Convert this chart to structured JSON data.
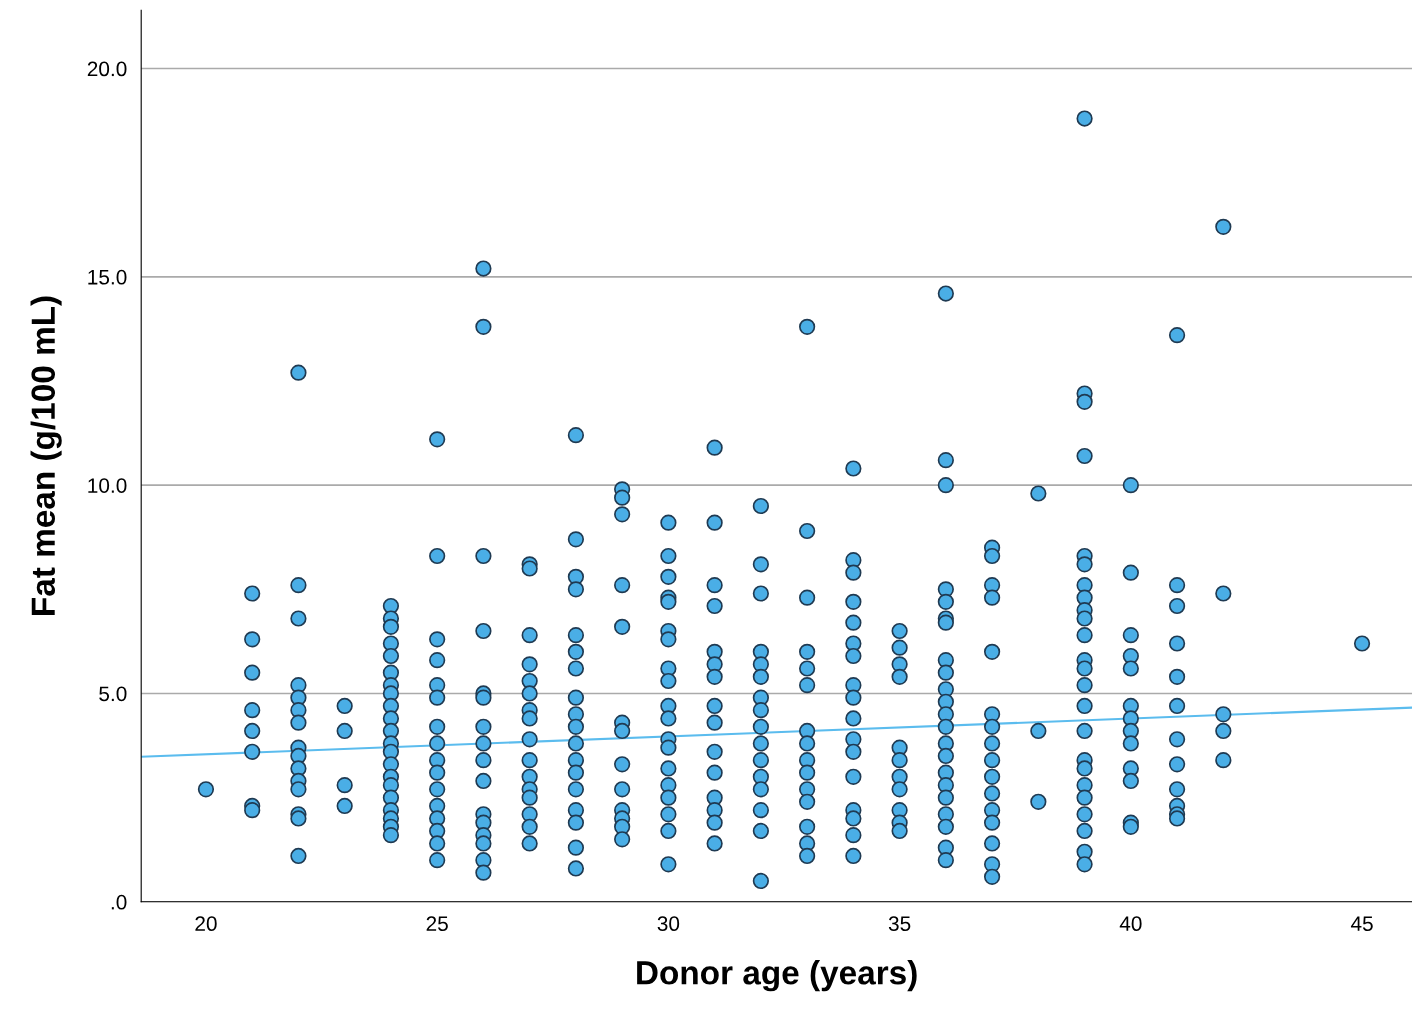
{
  "chart_data": {
    "type": "scatter",
    "xlabel": "Donor age (years)",
    "ylabel": "Fat mean (g/100 mL)",
    "xlim": [
      18.6,
      46.08
    ],
    "ylim": [
      0,
      21.4
    ],
    "xticks": [
      20,
      25,
      30,
      35,
      40,
      45
    ],
    "yticks": [
      {
        "value": 0,
        "label": ".0"
      },
      {
        "value": 5,
        "label": "5.0"
      },
      {
        "value": 10,
        "label": "10.0"
      },
      {
        "value": 15,
        "label": "15.0"
      },
      {
        "value": 20,
        "label": "20.0"
      }
    ],
    "grid": "y",
    "marker": "circle",
    "series": [
      {
        "type": "scatter",
        "color": "#4aaee6",
        "x": [
          20,
          21,
          21,
          21,
          21,
          21,
          21,
          21,
          21,
          22,
          22,
          22,
          22,
          22,
          22,
          22,
          22,
          22,
          22,
          22,
          22,
          22,
          22,
          22,
          23,
          23,
          23,
          23,
          24,
          24,
          24,
          24,
          24,
          24,
          24,
          24,
          24,
          24,
          24,
          24,
          24,
          24,
          24,
          24,
          24,
          24,
          24,
          24,
          24,
          25,
          25,
          25,
          25,
          25,
          25,
          25,
          25,
          25,
          25,
          25,
          25,
          25,
          25,
          25,
          25,
          26,
          26,
          26,
          26,
          26,
          26,
          26,
          26,
          26,
          26,
          26,
          26,
          26,
          26,
          26,
          26,
          27,
          27,
          27,
          27,
          27,
          27,
          27,
          27,
          27,
          27,
          27,
          27,
          27,
          27,
          27,
          27,
          28,
          28,
          28,
          28,
          28,
          28,
          28,
          28,
          28,
          28,
          28,
          28,
          28,
          28,
          28,
          28,
          28,
          28,
          29,
          29,
          29,
          29,
          29,
          29,
          29,
          29,
          29,
          29,
          29,
          29,
          29,
          30,
          30,
          30,
          30,
          30,
          30,
          30,
          30,
          30,
          30,
          30,
          30,
          30,
          30,
          30,
          30,
          30,
          30,
          30,
          31,
          31,
          31,
          31,
          31,
          31,
          31,
          31,
          31,
          31,
          31,
          31,
          31,
          31,
          31,
          32,
          32,
          32,
          32,
          32,
          32,
          32,
          32,
          32,
          32,
          32,
          32,
          32,
          32,
          32,
          32,
          33,
          33,
          33,
          33,
          33,
          33,
          33,
          33,
          33,
          33,
          33,
          33,
          33,
          33,
          33,
          34,
          34,
          34,
          34,
          34,
          34,
          34,
          34,
          34,
          34,
          34,
          34,
          34,
          34,
          34,
          34,
          34,
          35,
          35,
          35,
          35,
          35,
          35,
          35,
          35,
          35,
          35,
          35,
          36,
          36,
          36,
          36,
          36,
          36,
          36,
          36,
          36,
          36,
          36,
          36,
          36,
          36,
          36,
          36,
          36,
          36,
          36,
          36,
          36,
          36,
          37,
          37,
          37,
          37,
          37,
          37,
          37,
          37,
          37,
          37,
          37,
          37,
          37,
          37,
          37,
          37,
          38,
          38,
          38,
          39,
          39,
          39,
          39,
          39,
          39,
          39,
          39,
          39,
          39,
          39,
          39,
          39,
          39,
          39,
          39,
          39,
          39,
          39,
          39,
          39,
          39,
          39,
          39,
          40,
          40,
          40,
          40,
          40,
          40,
          40,
          40,
          40,
          40,
          40,
          40,
          40,
          41,
          41,
          41,
          41,
          41,
          41,
          41,
          41,
          41,
          41,
          41,
          41,
          42,
          42,
          42,
          42,
          42,
          45
        ],
        "values": [
          2.7,
          7.4,
          6.3,
          5.5,
          4.6,
          4.1,
          3.6,
          2.3,
          2.2,
          12.7,
          7.6,
          6.8,
          5.2,
          4.9,
          4.6,
          4.3,
          3.7,
          3.5,
          3.2,
          2.9,
          2.7,
          2.1,
          2.0,
          1.1,
          4.7,
          4.1,
          2.8,
          2.3,
          7.1,
          6.8,
          6.6,
          6.2,
          5.9,
          5.5,
          5.2,
          5.0,
          4.7,
          4.4,
          4.1,
          3.8,
          3.6,
          3.3,
          3.0,
          2.8,
          2.5,
          2.2,
          2.0,
          1.8,
          1.6,
          11.1,
          8.3,
          6.3,
          5.8,
          5.2,
          4.9,
          4.2,
          3.8,
          3.4,
          3.1,
          2.7,
          2.3,
          2.0,
          1.7,
          1.4,
          1.0,
          15.2,
          13.8,
          8.3,
          6.5,
          5.0,
          4.9,
          4.2,
          3.8,
          3.4,
          2.9,
          2.1,
          1.9,
          1.6,
          1.4,
          1.0,
          0.7,
          8.1,
          8.0,
          6.4,
          5.7,
          5.3,
          5.0,
          4.6,
          4.4,
          3.9,
          3.4,
          3.0,
          2.7,
          2.5,
          2.1,
          1.8,
          1.4,
          11.2,
          8.7,
          7.8,
          7.5,
          6.4,
          6.0,
          5.6,
          4.9,
          4.5,
          4.2,
          3.8,
          3.4,
          3.1,
          2.7,
          2.2,
          1.9,
          1.3,
          0.8,
          9.9,
          9.7,
          9.3,
          7.6,
          6.6,
          4.3,
          4.1,
          3.3,
          2.7,
          2.2,
          2.0,
          1.8,
          1.5,
          9.1,
          8.3,
          7.8,
          7.3,
          7.2,
          6.5,
          6.3,
          5.6,
          5.3,
          4.7,
          4.4,
          3.9,
          3.7,
          3.2,
          2.8,
          2.5,
          2.1,
          1.7,
          0.9,
          10.9,
          9.1,
          7.6,
          7.1,
          6.0,
          5.7,
          5.4,
          4.7,
          4.3,
          3.6,
          3.1,
          2.5,
          2.2,
          1.9,
          1.4,
          9.5,
          8.1,
          7.4,
          6.0,
          5.7,
          5.4,
          4.9,
          4.6,
          4.2,
          3.8,
          3.4,
          3.0,
          2.7,
          2.2,
          1.7,
          0.5,
          13.8,
          8.9,
          7.3,
          6.0,
          5.6,
          5.2,
          4.1,
          3.8,
          3.4,
          3.1,
          2.7,
          2.4,
          1.8,
          1.4,
          1.1,
          10.4,
          8.2,
          7.9,
          7.2,
          6.7,
          6.2,
          5.9,
          5.2,
          4.9,
          4.4,
          3.9,
          3.6,
          3.0,
          2.2,
          2.0,
          1.6,
          1.1,
          6.5,
          6.1,
          5.7,
          5.4,
          3.7,
          3.4,
          3.0,
          2.7,
          2.2,
          1.9,
          1.7,
          14.6,
          10.6,
          10.0,
          7.5,
          7.2,
          6.8,
          6.7,
          5.8,
          5.5,
          5.1,
          4.8,
          4.5,
          4.2,
          3.8,
          3.5,
          3.1,
          2.8,
          2.5,
          2.1,
          1.8,
          1.3,
          1.0,
          8.5,
          8.3,
          7.6,
          7.3,
          6.0,
          4.5,
          4.2,
          3.8,
          3.4,
          3.0,
          2.6,
          2.2,
          1.9,
          1.4,
          0.9,
          0.6,
          9.8,
          4.1,
          2.4,
          18.8,
          12.2,
          12.0,
          10.7,
          8.3,
          8.1,
          7.6,
          7.3,
          7.0,
          6.8,
          6.4,
          5.8,
          5.6,
          5.2,
          4.7,
          4.1,
          3.4,
          3.2,
          2.8,
          2.5,
          2.1,
          1.7,
          1.2,
          0.9,
          10.0,
          7.9,
          6.4,
          5.9,
          5.6,
          4.7,
          4.4,
          4.1,
          3.8,
          3.2,
          2.9,
          1.9,
          1.8,
          13.6,
          7.6,
          7.1,
          6.2,
          5.4,
          4.7,
          3.9,
          3.3,
          2.7,
          2.3,
          2.1,
          2.0,
          16.2,
          7.4,
          4.5,
          4.1,
          3.4,
          6.2
        ]
      },
      {
        "type": "line",
        "color": "#5bbcee",
        "marker": "none",
        "x": [
          18.6,
          46.08
        ],
        "values": [
          3.48,
          4.66
        ]
      }
    ]
  }
}
